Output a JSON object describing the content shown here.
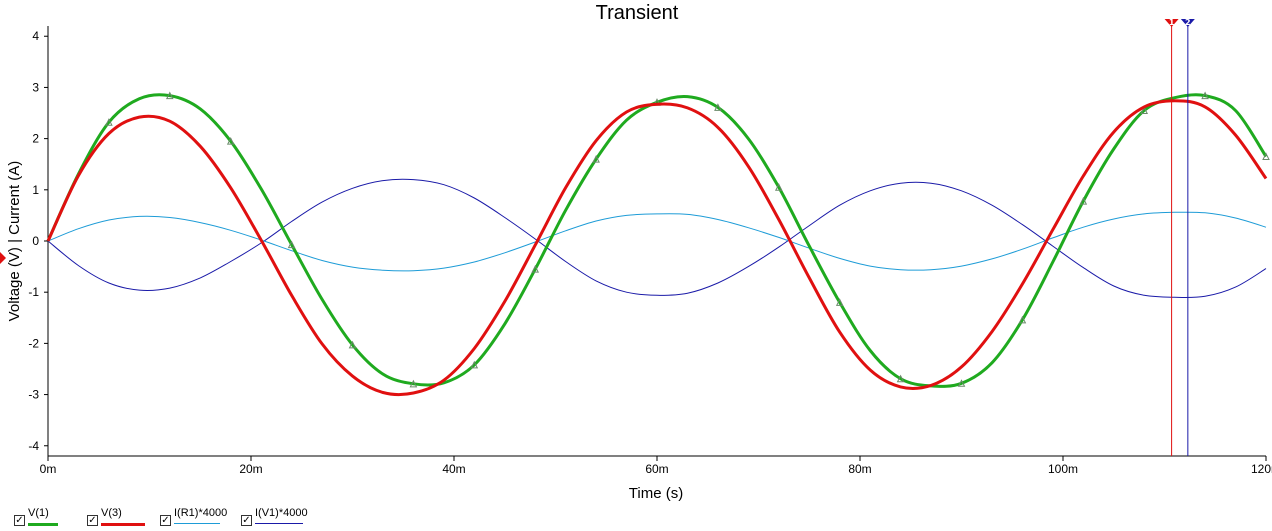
{
  "chart_data": {
    "type": "line",
    "title": "Transient",
    "xlabel": "Time (s)",
    "ylabel": "Voltage (V) | Current (A)",
    "xlim": [
      0,
      120
    ],
    "ylim": [
      -4.2,
      4.2
    ],
    "x_ticks": [
      {
        "value": 0,
        "label": "0m"
      },
      {
        "value": 20,
        "label": "20m"
      },
      {
        "value": 40,
        "label": "40m"
      },
      {
        "value": 60,
        "label": "60m"
      },
      {
        "value": 80,
        "label": "80m"
      },
      {
        "value": 100,
        "label": "100m"
      },
      {
        "value": 120,
        "label": "120m"
      }
    ],
    "y_ticks": [
      {
        "value": 4,
        "label": "4"
      },
      {
        "value": 3,
        "label": "3"
      },
      {
        "value": 2,
        "label": "2"
      },
      {
        "value": 1,
        "label": "1"
      },
      {
        "value": 0,
        "label": "0"
      },
      {
        "value": -1,
        "label": "-1"
      },
      {
        "value": -2,
        "label": "-2"
      },
      {
        "value": -3,
        "label": "-3"
      },
      {
        "value": -4,
        "label": "-4"
      }
    ],
    "grid": false,
    "legend_position": "bottom",
    "series": [
      {
        "name": "V(1)",
        "color": "#1faa1f",
        "width": 3,
        "markers": true,
        "x": [
          0,
          3,
          6,
          9,
          12,
          15,
          18,
          21,
          24,
          27,
          30,
          33,
          36,
          39,
          42,
          45,
          48,
          51,
          54,
          57,
          60,
          63,
          66,
          69,
          72,
          75,
          78,
          81,
          84,
          87,
          90,
          93,
          96,
          99,
          102,
          105,
          108,
          111,
          114,
          117,
          120
        ],
        "values": [
          0.0,
          1.31,
          2.32,
          2.78,
          2.84,
          2.58,
          1.95,
          1.02,
          -0.07,
          -1.14,
          -2.03,
          -2.6,
          -2.79,
          -2.77,
          -2.42,
          -1.62,
          -0.55,
          0.6,
          1.6,
          2.36,
          2.71,
          2.82,
          2.61,
          2.0,
          1.05,
          -0.1,
          -1.2,
          -2.14,
          -2.69,
          -2.83,
          -2.78,
          -2.38,
          -1.54,
          -0.41,
          0.78,
          1.8,
          2.55,
          2.8,
          2.84,
          2.55,
          1.65
        ]
      },
      {
        "name": "V(3)",
        "color": "#e01010",
        "width": 3,
        "markers": false,
        "x": [
          0,
          3,
          6,
          9,
          12,
          15,
          18,
          21,
          24,
          27,
          30,
          33,
          36,
          39,
          42,
          45,
          48,
          51,
          54,
          57,
          60,
          63,
          66,
          69,
          72,
          75,
          78,
          81,
          84,
          87,
          90,
          93,
          96,
          99,
          102,
          105,
          108,
          111,
          114,
          117,
          120
        ],
        "values": [
          0.0,
          1.28,
          2.1,
          2.42,
          2.34,
          1.85,
          1.04,
          0.02,
          -1.06,
          -2.01,
          -2.64,
          -2.96,
          -2.97,
          -2.72,
          -2.1,
          -1.18,
          -0.08,
          1.04,
          1.96,
          2.52,
          2.67,
          2.6,
          2.22,
          1.46,
          0.42,
          -0.72,
          -1.78,
          -2.52,
          -2.85,
          -2.82,
          -2.46,
          -1.77,
          -0.84,
          0.22,
          1.27,
          2.13,
          2.62,
          2.74,
          2.62,
          2.07,
          1.22
        ]
      },
      {
        "name": "I(R1)*4000",
        "color": "#1e9cd7",
        "width": 1,
        "markers": false,
        "x": [
          0,
          3,
          6,
          9,
          12,
          15,
          18,
          21,
          24,
          27,
          30,
          33,
          36,
          39,
          42,
          45,
          48,
          51,
          54,
          57,
          60,
          63,
          66,
          69,
          72,
          75,
          78,
          81,
          84,
          87,
          90,
          93,
          96,
          99,
          102,
          105,
          108,
          111,
          114,
          117,
          120
        ],
        "values": [
          0.0,
          0.24,
          0.41,
          0.48,
          0.46,
          0.36,
          0.21,
          0.02,
          -0.19,
          -0.38,
          -0.51,
          -0.57,
          -0.58,
          -0.53,
          -0.41,
          -0.23,
          -0.02,
          0.2,
          0.39,
          0.5,
          0.53,
          0.52,
          0.42,
          0.26,
          0.07,
          -0.14,
          -0.34,
          -0.49,
          -0.56,
          -0.56,
          -0.49,
          -0.35,
          -0.16,
          0.06,
          0.27,
          0.43,
          0.53,
          0.56,
          0.55,
          0.45,
          0.27
        ]
      },
      {
        "name": "I(V1)*4000",
        "color": "#1a1aa8",
        "width": 1,
        "markers": false,
        "x": [
          0,
          3,
          6,
          9,
          12,
          15,
          18,
          21,
          24,
          27,
          30,
          33,
          36,
          39,
          42,
          45,
          48,
          51,
          54,
          57,
          60,
          63,
          66,
          69,
          72,
          75,
          78,
          81,
          84,
          87,
          90,
          93,
          96,
          99,
          102,
          105,
          108,
          111,
          114,
          117,
          120
        ],
        "values": [
          0.0,
          -0.48,
          -0.82,
          -0.96,
          -0.92,
          -0.72,
          -0.4,
          -0.04,
          0.38,
          0.76,
          1.03,
          1.18,
          1.2,
          1.1,
          0.84,
          0.46,
          0.04,
          -0.4,
          -0.78,
          -1.0,
          -1.06,
          -1.02,
          -0.82,
          -0.5,
          -0.12,
          0.3,
          0.7,
          0.98,
          1.13,
          1.13,
          0.98,
          0.7,
          0.32,
          -0.1,
          -0.52,
          -0.88,
          -1.06,
          -1.1,
          -1.08,
          -0.9,
          -0.54
        ]
      }
    ],
    "cursors": [
      {
        "id": "1",
        "x": 110.7,
        "color": "#e01010"
      },
      {
        "id": "2",
        "x": 112.3,
        "color": "#1a1aa8"
      }
    ]
  },
  "legend": {
    "items": [
      {
        "label": "V(1)",
        "checked": true,
        "check_glyph": "✓"
      },
      {
        "label": "V(3)",
        "checked": true,
        "check_glyph": "✓"
      },
      {
        "label": "I(R1)*4000",
        "checked": true,
        "check_glyph": "✓"
      },
      {
        "label": "I(V1)*4000",
        "checked": true,
        "check_glyph": "✓"
      }
    ]
  }
}
